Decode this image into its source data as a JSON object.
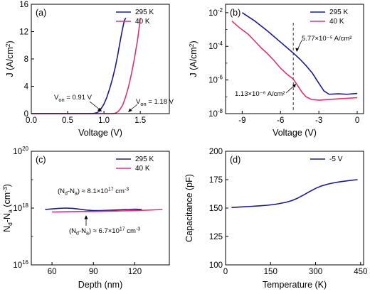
{
  "chart_data": [
    {
      "type": "line",
      "panel_label": "(a)",
      "xlabel": "Voltage (V)",
      "ylabel": "J (A/cm²)",
      "xlim": [
        0.0,
        1.9
      ],
      "ylim": [
        0,
        16
      ],
      "xticks": [
        0.0,
        0.5,
        1.0,
        1.5
      ],
      "xtick_labels": [
        "0.0",
        "0.5",
        "1.0",
        "1.5"
      ],
      "yticks": [
        0,
        4,
        8,
        12,
        16
      ],
      "ytick_labels": [
        "0",
        "4",
        "8",
        "12",
        "16"
      ],
      "legend_position": "top-right",
      "series": [
        {
          "name": "295 K",
          "color": "#1a1a8c",
          "x": [
            0.0,
            0.8,
            0.84,
            0.87,
            0.9,
            0.93,
            0.96,
            1.0,
            1.04,
            1.08,
            1.12,
            1.16,
            1.19,
            1.22,
            1.25,
            1.28,
            1.3
          ],
          "y": [
            0,
            0,
            0.02,
            0.05,
            0.12,
            0.3,
            0.7,
            1.4,
            2.4,
            3.7,
            5.2,
            7.0,
            8.6,
            10.4,
            12.1,
            13.6,
            14.0
          ]
        },
        {
          "name": "40 K",
          "color": "#e0306e",
          "x": [
            0.0,
            1.1,
            1.13,
            1.16,
            1.19,
            1.22,
            1.26,
            1.3,
            1.34,
            1.38,
            1.42,
            1.46,
            1.49,
            1.5
          ],
          "y": [
            0,
            0,
            0.02,
            0.08,
            0.25,
            0.6,
            1.3,
            2.5,
            4.0,
            5.9,
            8.1,
            10.6,
            13.0,
            14.0
          ]
        }
      ],
      "annotations": [
        {
          "main": "V",
          "sub": "on",
          "value": " = 0.91 V"
        },
        {
          "main": "V",
          "sub": "on",
          "value": " = 1.18 V"
        }
      ]
    },
    {
      "type": "line",
      "panel_label": "(b)",
      "xlabel": "Voltage (V)",
      "ylabel": "J (A/cm²)",
      "xlim": [
        -10.3,
        0.5
      ],
      "ylim_log10": [
        -8,
        -1.5
      ],
      "xticks": [
        -9,
        -6,
        -3,
        0
      ],
      "xtick_labels": [
        "-9",
        "-6",
        "-3",
        "0"
      ],
      "ytick_exponents": [
        -8,
        -6,
        -4,
        -2
      ],
      "legend_position": "top-right",
      "dashed_line_x": -5,
      "series": [
        {
          "name": "295 K",
          "color": "#1a1a8c",
          "x": [
            -9.0,
            -8.0,
            -7.0,
            -6.0,
            -5.0,
            -4.5,
            -4.0,
            -3.5,
            -3.0,
            -2.6,
            -2.2,
            -1.5,
            -0.8,
            0.0
          ],
          "log10_y": [
            -2.0,
            -2.5,
            -3.1,
            -3.75,
            -4.4,
            -4.75,
            -5.15,
            -5.6,
            -6.2,
            -6.65,
            -6.85,
            -6.82,
            -6.85,
            -6.8
          ]
        },
        {
          "name": "40 K",
          "color": "#e0306e",
          "x": [
            -9.8,
            -9.2,
            -8.5,
            -8.0,
            -7.5,
            -7.0,
            -6.5,
            -6.0,
            -5.5,
            -5.0,
            -4.6,
            -4.3,
            -4.0,
            -3.6,
            -3.0,
            -2.0,
            -1.0,
            0.0
          ],
          "log10_y": [
            -2.5,
            -2.9,
            -3.3,
            -3.7,
            -4.1,
            -4.45,
            -4.85,
            -5.3,
            -5.65,
            -5.95,
            -6.4,
            -6.75,
            -7.0,
            -7.15,
            -7.2,
            -7.15,
            -7.1,
            -7.05
          ]
        }
      ],
      "annotations": [
        {
          "text": "5.77×10⁻⁵ A/cm²"
        },
        {
          "text": "1.13×10⁻⁶ A/cm²"
        }
      ]
    },
    {
      "type": "line",
      "panel_label": "(c)",
      "xlabel": "Depth (nm)",
      "ylabel": "Nd-Na (cm⁻³)",
      "xlim": [
        45,
        145
      ],
      "ylim_log10": [
        16,
        20
      ],
      "xticks": [
        60,
        90,
        120
      ],
      "xtick_labels": [
        "60",
        "90",
        "120"
      ],
      "ytick_exponents": [
        16,
        18,
        20
      ],
      "legend_position": "top-right",
      "series": [
        {
          "name": "295 K",
          "color": "#1a1a8c",
          "x": [
            55,
            60,
            65,
            70,
            75,
            80,
            85,
            90,
            95,
            100,
            105,
            110,
            115,
            120,
            125
          ],
          "log10_y": [
            17.95,
            17.97,
            17.99,
            18.0,
            17.99,
            17.96,
            17.93,
            17.91,
            17.91,
            17.92,
            17.93,
            17.94,
            17.95,
            17.96,
            17.95
          ]
        },
        {
          "name": "40 K",
          "color": "#e0306e",
          "x": [
            60,
            70,
            80,
            90,
            100,
            110,
            120,
            130,
            140
          ],
          "log10_y": [
            17.86,
            17.87,
            17.88,
            17.88,
            17.89,
            17.9,
            17.91,
            17.93,
            17.95
          ]
        }
      ],
      "annotations": [
        {
          "pre": "(N",
          "s1": "d",
          "mid": "-N",
          "s2": "a",
          "post": ") ≈ 8.1×10",
          "sup": "17",
          "tail": " cm",
          "sup2": "-3"
        },
        {
          "pre": "(N",
          "s1": "d",
          "mid": "-N",
          "s2": "a",
          "post": ") ≈ 6.7×10",
          "sup": "17",
          "tail": " cm",
          "sup2": "-3"
        }
      ]
    },
    {
      "type": "line",
      "panel_label": "(d)",
      "xlabel": "Temperature (K)",
      "ylabel": "Capacitance (pF)",
      "xlim": [
        0,
        460
      ],
      "ylim": [
        100,
        200
      ],
      "xticks": [
        0,
        150,
        300,
        450
      ],
      "xtick_labels": [
        "0",
        "150",
        "300",
        "450"
      ],
      "yticks": [
        100,
        125,
        150,
        175,
        200
      ],
      "ytick_labels": [
        "100",
        "125",
        "150",
        "175",
        "200"
      ],
      "legend_position": "top-right",
      "series": [
        {
          "name": "-5 V",
          "color": "#1a1a8c",
          "x": [
            20,
            50,
            80,
            110,
            140,
            170,
            200,
            220,
            240,
            260,
            280,
            300,
            320,
            340,
            360,
            380,
            400,
            420,
            440
          ],
          "y": [
            150.5,
            151.0,
            151.4,
            151.9,
            152.5,
            153.5,
            155.0,
            156.5,
            158.7,
            161.5,
            164.5,
            167.3,
            169.5,
            171.0,
            172.2,
            173.1,
            173.8,
            174.5,
            175.0
          ]
        }
      ]
    }
  ]
}
